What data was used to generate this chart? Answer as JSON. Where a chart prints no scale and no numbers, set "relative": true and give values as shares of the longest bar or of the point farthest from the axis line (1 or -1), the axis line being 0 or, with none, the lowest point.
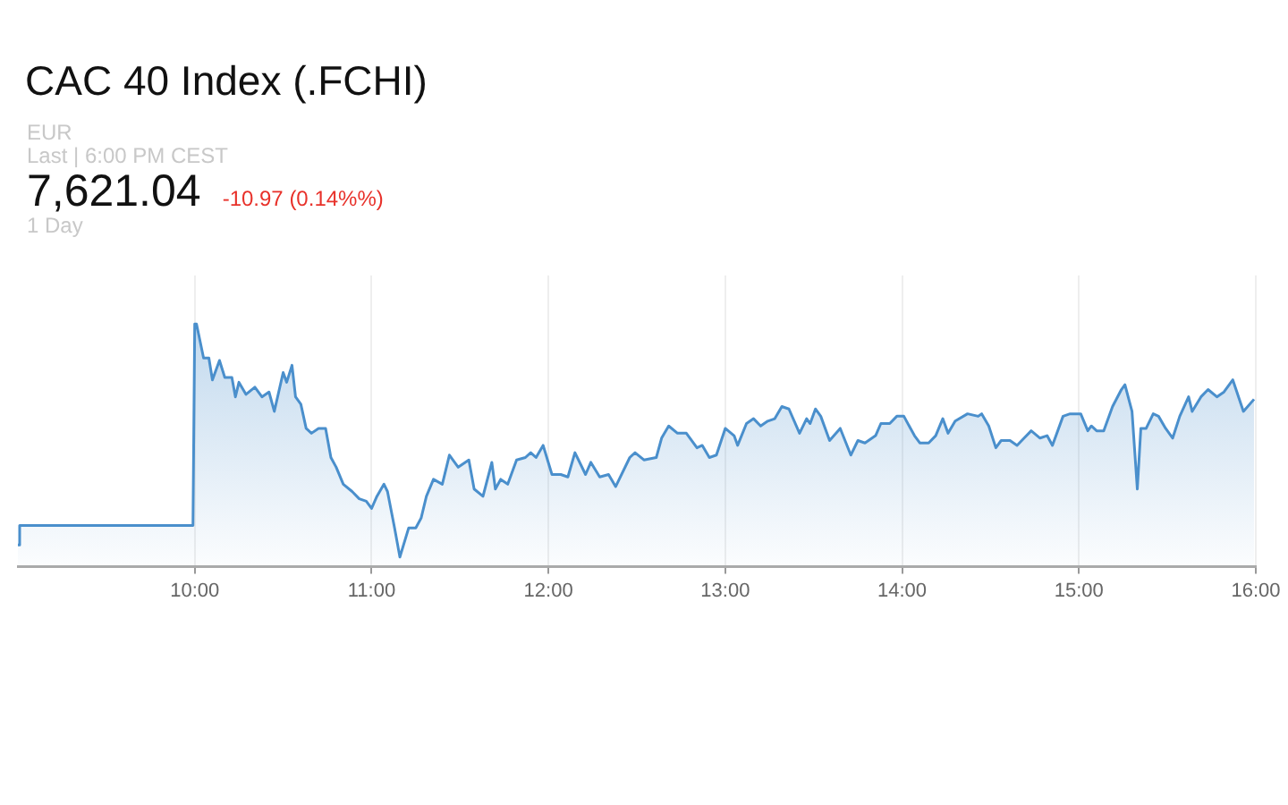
{
  "chart_data": {
    "type": "area",
    "title": "CAC 40 Index (.FCHI)",
    "annotations": [
      "EUR",
      "Last | 6:00 PM CEST",
      "7,621.04",
      "-10.97 (0.14%%)",
      "1 Day"
    ],
    "relative": true,
    "grid": "x",
    "legend": false,
    "marker": "none",
    "xlim": [
      9,
      16
    ],
    "xticks": [
      {
        "value": 10,
        "label": "10:00"
      },
      {
        "value": 11,
        "label": "11:00"
      },
      {
        "value": 12,
        "label": "12:00"
      },
      {
        "value": 13,
        "label": "13:00"
      },
      {
        "value": 14,
        "label": "14:00"
      },
      {
        "value": 15,
        "label": "15:00"
      },
      {
        "value": 16,
        "label": "16:00"
      }
    ],
    "series": [
      {
        "color": "#4a8fcc",
        "x": [
          9,
          9.01,
          9.99,
          10,
          10.01,
          10.05,
          10.08,
          10.1,
          10.14,
          10.17,
          10.21,
          10.23,
          10.25,
          10.29,
          10.34,
          10.38,
          10.42,
          10.45,
          10.5,
          10.52,
          10.55,
          10.57,
          10.6,
          10.63,
          10.66,
          10.7,
          10.74,
          10.77,
          10.8,
          10.84,
          10.89,
          10.93,
          10.97,
          11,
          11.03,
          11.07,
          11.09,
          11.13,
          11.16,
          11.21,
          11.25,
          11.28,
          11.31,
          11.35,
          11.4,
          11.44,
          11.49,
          11.55,
          11.58,
          11.63,
          11.68,
          11.7,
          11.73,
          11.77,
          11.82,
          11.87,
          11.9,
          11.93,
          11.97,
          12.02,
          12.07,
          12.11,
          12.15,
          12.21,
          12.24,
          12.29,
          12.34,
          12.38,
          12.46,
          12.49,
          12.54,
          12.61,
          12.64,
          12.68,
          12.73,
          12.78,
          12.84,
          12.87,
          12.91,
          12.95,
          13,
          13.05,
          13.07,
          13.12,
          13.16,
          13.2,
          13.24,
          13.28,
          13.32,
          13.36,
          13.42,
          13.46,
          13.48,
          13.51,
          13.54,
          13.59,
          13.65,
          13.71,
          13.75,
          13.79,
          13.85,
          13.88,
          13.93,
          13.97,
          14.01,
          14.07,
          14.1,
          14.15,
          14.19,
          14.23,
          14.26,
          14.3,
          14.37,
          14.43,
          14.45,
          14.49,
          14.53,
          14.56,
          14.61,
          14.65,
          14.69,
          14.73,
          14.78,
          14.82,
          14.85,
          14.91,
          14.95,
          15.01,
          15.05,
          15.07,
          15.1,
          15.14,
          15.19,
          15.24,
          15.26,
          15.3,
          15.33,
          15.35,
          15.38,
          15.42,
          15.45,
          15.49,
          15.53,
          15.57,
          15.62,
          15.64,
          15.69,
          15.73,
          15.78,
          15.82,
          15.87,
          15.93,
          15.99
        ],
        "values": [
          0.09,
          0.17,
          0.17,
          1,
          1,
          0.86,
          0.86,
          0.77,
          0.85,
          0.78,
          0.78,
          0.7,
          0.76,
          0.71,
          0.74,
          0.7,
          0.72,
          0.64,
          0.8,
          0.76,
          0.83,
          0.7,
          0.67,
          0.57,
          0.55,
          0.57,
          0.57,
          0.45,
          0.41,
          0.34,
          0.31,
          0.28,
          0.27,
          0.24,
          0.29,
          0.34,
          0.31,
          0.16,
          0.04,
          0.16,
          0.16,
          0.2,
          0.29,
          0.36,
          0.34,
          0.46,
          0.41,
          0.44,
          0.32,
          0.29,
          0.43,
          0.32,
          0.36,
          0.34,
          0.44,
          0.45,
          0.47,
          0.45,
          0.5,
          0.38,
          0.38,
          0.37,
          0.47,
          0.38,
          0.43,
          0.37,
          0.38,
          0.33,
          0.45,
          0.47,
          0.44,
          0.45,
          0.53,
          0.58,
          0.55,
          0.55,
          0.49,
          0.5,
          0.45,
          0.46,
          0.57,
          0.54,
          0.5,
          0.59,
          0.61,
          0.58,
          0.6,
          0.61,
          0.66,
          0.65,
          0.55,
          0.61,
          0.59,
          0.65,
          0.62,
          0.52,
          0.57,
          0.46,
          0.52,
          0.51,
          0.54,
          0.59,
          0.59,
          0.62,
          0.62,
          0.54,
          0.51,
          0.51,
          0.54,
          0.61,
          0.55,
          0.6,
          0.63,
          0.62,
          0.63,
          0.58,
          0.49,
          0.52,
          0.52,
          0.5,
          0.53,
          0.56,
          0.53,
          0.54,
          0.5,
          0.62,
          0.63,
          0.63,
          0.56,
          0.58,
          0.56,
          0.56,
          0.66,
          0.73,
          0.75,
          0.64,
          0.32,
          0.57,
          0.57,
          0.63,
          0.62,
          0.57,
          0.53,
          0.62,
          0.7,
          0.64,
          0.7,
          0.73,
          0.7,
          0.72,
          0.77,
          0.64,
          0.69
        ]
      }
    ]
  }
}
